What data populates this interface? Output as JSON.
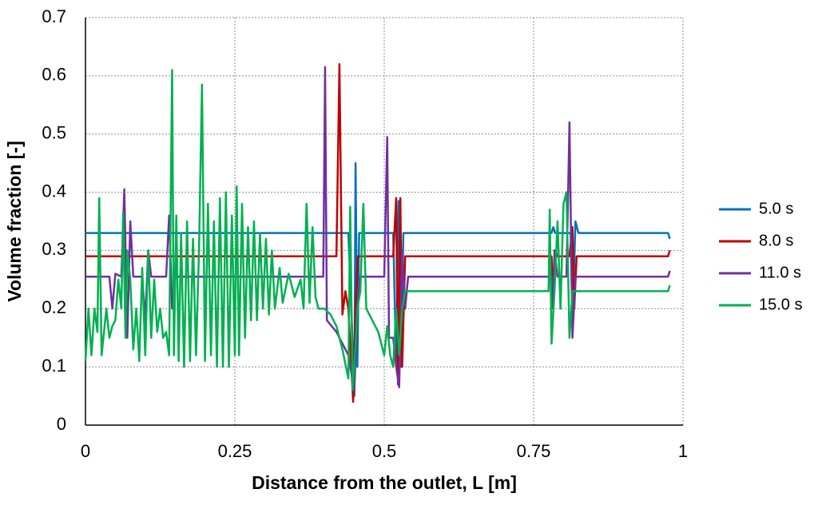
{
  "chart_data": {
    "type": "line",
    "xlabel": "Distance from the outlet, L [m]",
    "ylabel": "Volume fraction [-]",
    "xlim": [
      0,
      1
    ],
    "xticks": [
      0,
      0.25,
      0.5,
      0.75,
      1
    ],
    "ylim": [
      0,
      0.7
    ],
    "yticks": [
      0,
      0.1,
      0.2,
      0.3,
      0.4,
      0.5,
      0.6,
      0.7
    ],
    "grid": true,
    "legend": "right",
    "series": [
      {
        "name": "5.0 s",
        "color": "#0070c0",
        "x": [
          0,
          0.44,
          0.445,
          0.45,
          0.452,
          0.455,
          0.458,
          0.515,
          0.52,
          0.524,
          0.528,
          0.532,
          0.78,
          0.783,
          0.786,
          0.812,
          0.815,
          0.82,
          0.825,
          0.975,
          0.978
        ],
        "values": [
          0.33,
          0.33,
          0.2,
          0.05,
          0.45,
          0.1,
          0.33,
          0.33,
          0.1,
          0.385,
          0.1,
          0.33,
          0.33,
          0.34,
          0.33,
          0.33,
          0.17,
          0.35,
          0.33,
          0.33,
          0.32
        ]
      },
      {
        "name": "8.0 s",
        "color": "#c00000",
        "x": [
          0,
          0.42,
          0.425,
          0.43,
          0.435,
          0.44,
          0.448,
          0.452,
          0.456,
          0.515,
          0.52,
          0.523,
          0.527,
          0.53,
          0.535,
          0.78,
          0.783,
          0.786,
          0.79,
          0.81,
          0.815,
          0.818,
          0.822,
          0.975,
          0.978
        ],
        "values": [
          0.29,
          0.29,
          0.62,
          0.19,
          0.23,
          0.2,
          0.04,
          0.2,
          0.29,
          0.29,
          0.39,
          0.07,
          0.39,
          0.1,
          0.29,
          0.29,
          0.22,
          0.3,
          0.29,
          0.29,
          0.34,
          0.2,
          0.29,
          0.29,
          0.3
        ]
      },
      {
        "name": "11.0 s",
        "color": "#7030a0",
        "x": [
          0,
          0.04,
          0.045,
          0.05,
          0.06,
          0.065,
          0.07,
          0.075,
          0.08,
          0.095,
          0.1,
          0.105,
          0.11,
          0.135,
          0.14,
          0.145,
          0.15,
          0.398,
          0.401,
          0.404,
          0.42,
          0.44,
          0.45,
          0.455,
          0.46,
          0.5,
          0.505,
          0.508,
          0.515,
          0.52,
          0.525,
          0.53,
          0.535,
          0.54,
          0.78,
          0.782,
          0.785,
          0.79,
          0.805,
          0.81,
          0.815,
          0.82,
          0.975,
          0.978
        ],
        "values": [
          0.255,
          0.255,
          0.2,
          0.26,
          0.255,
          0.405,
          0.15,
          0.35,
          0.255,
          0.255,
          0.18,
          0.3,
          0.255,
          0.255,
          0.36,
          0.2,
          0.255,
          0.255,
          0.615,
          0.18,
          0.16,
          0.12,
          0.06,
          0.2,
          0.255,
          0.255,
          0.495,
          0.15,
          0.15,
          0.1,
          0.065,
          0.3,
          0.2,
          0.255,
          0.255,
          0.2,
          0.3,
          0.255,
          0.255,
          0.52,
          0.15,
          0.255,
          0.255,
          0.265
        ]
      },
      {
        "name": "15.0 s",
        "color": "#00b050",
        "x": [
          0,
          0.005,
          0.01,
          0.015,
          0.02,
          0.023,
          0.027,
          0.035,
          0.04,
          0.045,
          0.05,
          0.055,
          0.06,
          0.063,
          0.067,
          0.07,
          0.075,
          0.08,
          0.085,
          0.09,
          0.095,
          0.1,
          0.105,
          0.11,
          0.115,
          0.12,
          0.125,
          0.13,
          0.135,
          0.14,
          0.145,
          0.148,
          0.152,
          0.156,
          0.16,
          0.165,
          0.17,
          0.175,
          0.18,
          0.185,
          0.19,
          0.195,
          0.2,
          0.205,
          0.21,
          0.215,
          0.22,
          0.225,
          0.23,
          0.235,
          0.24,
          0.245,
          0.25,
          0.253,
          0.257,
          0.262,
          0.267,
          0.272,
          0.277,
          0.282,
          0.287,
          0.292,
          0.297,
          0.302,
          0.307,
          0.312,
          0.317,
          0.325,
          0.33,
          0.34,
          0.35,
          0.36,
          0.365,
          0.37,
          0.375,
          0.38,
          0.385,
          0.39,
          0.4,
          0.41,
          0.42,
          0.43,
          0.44,
          0.443,
          0.447,
          0.45,
          0.455,
          0.46,
          0.465,
          0.47,
          0.48,
          0.49,
          0.5,
          0.505,
          0.51,
          0.515,
          0.52,
          0.525,
          0.53,
          0.535,
          0.775,
          0.777,
          0.78,
          0.785,
          0.79,
          0.795,
          0.8,
          0.805,
          0.81,
          0.815,
          0.975,
          0.978
        ],
        "values": [
          0.11,
          0.2,
          0.12,
          0.2,
          0.16,
          0.39,
          0.12,
          0.2,
          0.15,
          0.17,
          0.18,
          0.25,
          0.2,
          0.365,
          0.15,
          0.3,
          0.25,
          0.13,
          0.2,
          0.11,
          0.27,
          0.12,
          0.3,
          0.15,
          0.25,
          0.16,
          0.2,
          0.15,
          0.16,
          0.12,
          0.61,
          0.12,
          0.36,
          0.11,
          0.33,
          0.1,
          0.35,
          0.11,
          0.32,
          0.12,
          0.3,
          0.585,
          0.11,
          0.38,
          0.12,
          0.35,
          0.1,
          0.39,
          0.1,
          0.4,
          0.1,
          0.36,
          0.12,
          0.41,
          0.12,
          0.38,
          0.15,
          0.34,
          0.18,
          0.35,
          0.18,
          0.33,
          0.2,
          0.32,
          0.19,
          0.3,
          0.2,
          0.27,
          0.21,
          0.26,
          0.22,
          0.25,
          0.2,
          0.38,
          0.21,
          0.34,
          0.22,
          0.2,
          0.2,
          0.19,
          0.17,
          0.13,
          0.08,
          0.375,
          0.06,
          0.1,
          0.2,
          0.23,
          0.38,
          0.2,
          0.18,
          0.16,
          0.12,
          0.17,
          0.12,
          0.1,
          0.2,
          0.12,
          0.2,
          0.23,
          0.23,
          0.37,
          0.14,
          0.23,
          0.35,
          0.2,
          0.38,
          0.4,
          0.15,
          0.23,
          0.23,
          0.24
        ]
      }
    ]
  }
}
